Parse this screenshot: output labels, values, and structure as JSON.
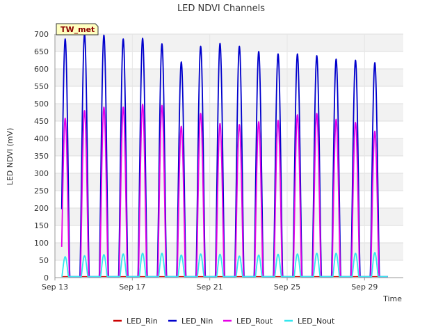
{
  "chart_data": {
    "type": "line",
    "title": "LED NDVI Channels",
    "xlabel": "Time",
    "ylabel": "LED NDVI (mV)",
    "station_label": "TW_met",
    "ylim": [
      0,
      700
    ],
    "yticks": [
      0,
      50,
      100,
      150,
      200,
      250,
      300,
      350,
      400,
      450,
      500,
      550,
      600,
      650,
      700
    ],
    "xlim": [
      13,
      31
    ],
    "xticks": [
      {
        "value": 13,
        "label": "Sep 13"
      },
      {
        "value": 17,
        "label": "Sep 17"
      },
      {
        "value": 21,
        "label": "Sep 21"
      },
      {
        "value": 25,
        "label": "Sep 25"
      },
      {
        "value": 29,
        "label": "Sep 29"
      }
    ],
    "grid": true,
    "legend_position": "bottom",
    "day_start": 13,
    "daily_peaks": {
      "days": [
        13,
        14,
        15,
        16,
        17,
        18,
        19,
        20,
        21,
        22,
        23,
        24,
        25,
        26,
        27,
        28,
        29
      ],
      "LED_Nin": [
        686,
        700,
        697,
        686,
        688,
        672,
        620,
        665,
        673,
        665,
        650,
        643,
        643,
        638,
        628,
        625,
        618
      ],
      "LED_Rout": [
        458,
        480,
        490,
        490,
        498,
        495,
        435,
        472,
        443,
        440,
        448,
        452,
        468,
        472,
        455,
        446,
        421
      ],
      "LED_Nout": [
        60,
        63,
        66,
        68,
        70,
        70,
        65,
        68,
        67,
        62,
        65,
        67,
        68,
        70,
        70,
        70,
        72
      ],
      "LED_Rin": [
        0,
        0,
        0,
        0,
        0,
        0,
        0,
        0,
        0,
        0,
        0,
        0,
        0,
        0,
        0,
        0,
        0
      ]
    },
    "series": [
      {
        "name": "LED_Rin",
        "color": "#cc0000"
      },
      {
        "name": "LED_Nin",
        "color": "#0000cc"
      },
      {
        "name": "LED_Rout",
        "color": "#e600e6"
      },
      {
        "name": "LED_Nout",
        "color": "#33e6ee"
      }
    ]
  }
}
